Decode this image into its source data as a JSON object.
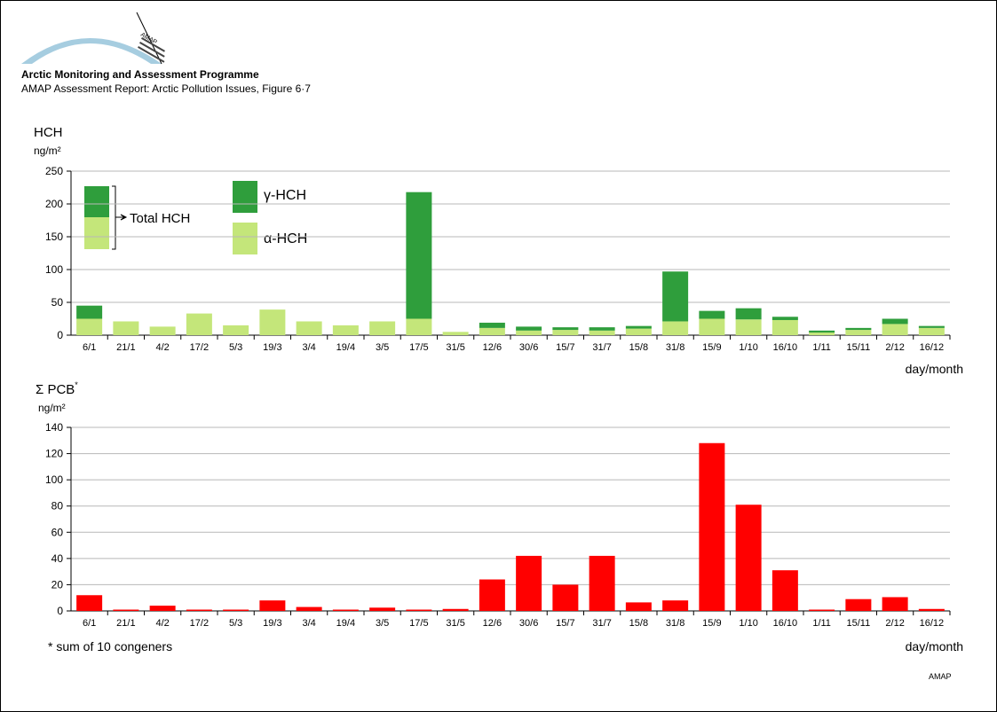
{
  "header": {
    "logo_text": "AMAP",
    "title": "Arctic Monitoring and Assessment Programme",
    "subtitle": "AMAP Assessment Report: Arctic Pollution Issues, Figure 6·7"
  },
  "footer": {
    "credit": "AMAP"
  },
  "colors": {
    "gamma": "#2f9e3c",
    "alpha": "#c4e67a",
    "pcb": "#ff0000",
    "grid": "#b8b8b8"
  },
  "chart_data": [
    {
      "type": "bar",
      "stacked": true,
      "title": "HCH",
      "ylabel_unit": "ng/m²",
      "xlabel": "day/month",
      "ylim": [
        0,
        250
      ],
      "yticks": [
        0,
        50,
        100,
        150,
        200,
        250
      ],
      "grid": true,
      "categories": [
        "6/1",
        "21/1",
        "4/2",
        "17/2",
        "5/3",
        "19/3",
        "3/4",
        "19/4",
        "3/5",
        "17/5",
        "31/5",
        "12/6",
        "30/6",
        "15/7",
        "31/7",
        "15/8",
        "31/8",
        "15/9",
        "1/10",
        "16/10",
        "1/11",
        "15/11",
        "2/12",
        "16/12"
      ],
      "series": [
        {
          "name": "α-HCH",
          "values": [
            25,
            21,
            13,
            33,
            15,
            39,
            21,
            15,
            21,
            25,
            5,
            11,
            7,
            8,
            7,
            10,
            21,
            25,
            24,
            23,
            4,
            8,
            17,
            11
          ]
        },
        {
          "name": "γ-HCH",
          "values": [
            20,
            0,
            0,
            0,
            0,
            0,
            0,
            0,
            0,
            193,
            0,
            8,
            6,
            4,
            5,
            4,
            76,
            12,
            17,
            5,
            3,
            3,
            8,
            3
          ]
        }
      ],
      "legend": {
        "placement": "top-left",
        "stack_label": "Total HCH",
        "series_labels": [
          "γ-HCH",
          "α-HCH"
        ]
      }
    },
    {
      "type": "bar",
      "title": "Σ PCB",
      "title_mark": "*",
      "ylabel_unit": "ng/m²",
      "xlabel": "day/month",
      "ylim": [
        0,
        140
      ],
      "yticks": [
        0,
        20,
        40,
        60,
        80,
        100,
        120,
        140
      ],
      "grid": true,
      "categories": [
        "6/1",
        "21/1",
        "4/2",
        "17/2",
        "5/3",
        "19/3",
        "3/4",
        "19/4",
        "3/5",
        "17/5",
        "31/5",
        "12/6",
        "30/6",
        "15/7",
        "31/7",
        "15/8",
        "31/8",
        "15/9",
        "1/10",
        "16/10",
        "1/11",
        "15/11",
        "2/12",
        "16/12"
      ],
      "values": [
        12,
        1,
        4,
        1,
        1,
        8,
        3,
        1,
        2.5,
        1,
        1.5,
        24,
        42,
        20,
        42,
        6.5,
        8,
        128,
        81,
        31,
        1,
        9,
        10.5,
        1.5
      ],
      "footnote": "*  sum of 10 congeners"
    }
  ]
}
